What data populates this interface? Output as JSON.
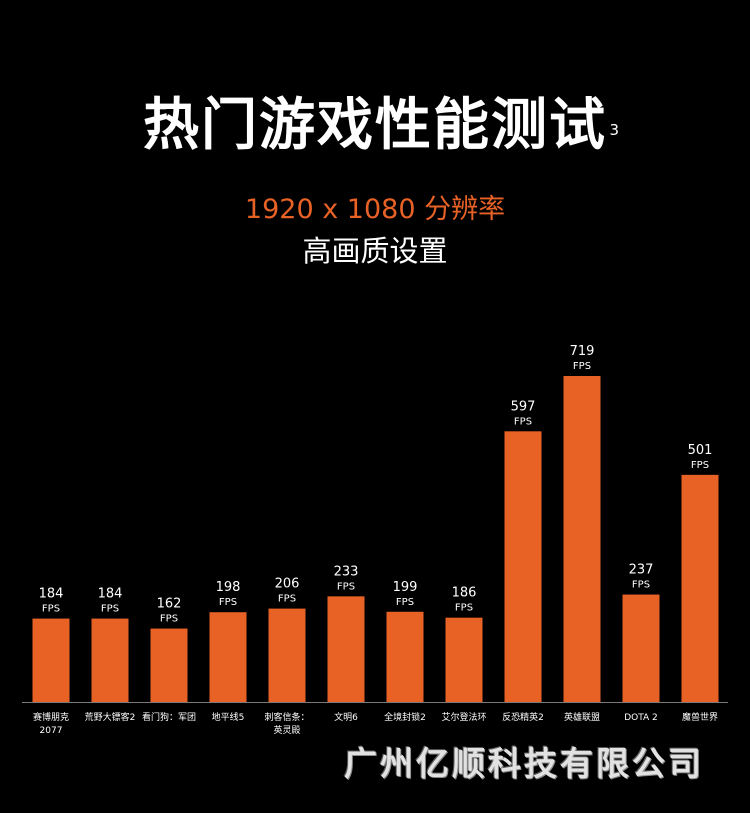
{
  "header": {
    "title": "热门游戏性能测试",
    "title_sup": "3",
    "subtitle": "1920 x 1080 分辨率",
    "subtitle2": "高画质设置"
  },
  "watermark": "广州亿顺科技有限公司",
  "colors": {
    "background": "#000000",
    "bar": "#e86226",
    "text": "#ffffff",
    "axis": "#7a7a7a"
  },
  "chart_data": {
    "type": "bar",
    "categories": [
      "赛博朋克2077",
      "荒野大镖客2",
      "看门狗：军团",
      "地平线5",
      "刺客信条：英灵殿",
      "文明6",
      "全境封锁2",
      "艾尔登法环",
      "反恐精英2",
      "英雄联盟",
      "DOTA 2",
      "魔兽世界"
    ],
    "category_lines": [
      [
        "赛博朋克",
        "2077"
      ],
      [
        "荒野大镖客2"
      ],
      [
        "看门狗：军团"
      ],
      [
        "地平线5"
      ],
      [
        "刺客信条：",
        "英灵殿"
      ],
      [
        "文明6"
      ],
      [
        "全境封锁2"
      ],
      [
        "艾尔登法环"
      ],
      [
        "反恐精英2"
      ],
      [
        "英雄联盟"
      ],
      [
        "DOTA 2"
      ],
      [
        "魔兽世界"
      ]
    ],
    "values": [
      184,
      184,
      162,
      198,
      206,
      233,
      199,
      186,
      597,
      719,
      237,
      501
    ],
    "value_unit": "FPS",
    "title": "",
    "xlabel": "",
    "ylabel": "",
    "ylim": [
      0,
      719
    ],
    "grid": false,
    "legend": "none"
  }
}
